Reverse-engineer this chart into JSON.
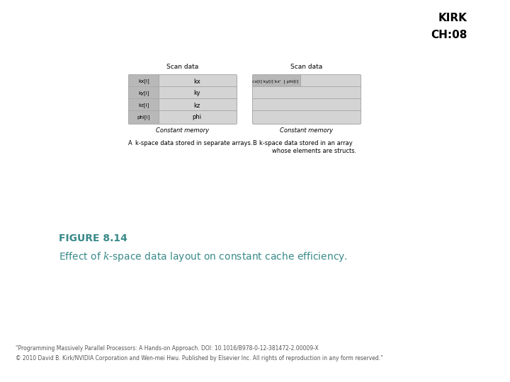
{
  "title_kirk": "KIRK",
  "title_ch": "CH:08",
  "background_color": "#ffffff",
  "figure_title": "FIGURE 8.14",
  "figure_caption_normal": "Effect of ",
  "figure_caption_italic": "k",
  "figure_caption_rest": "-space data layout on constant cache efficiency.",
  "figure_title_color": "#3a8a8a",
  "caption_color": "#3a8a8a",
  "footer_line1": "\"Programming Massively Parallel Processors: A Hands-on Approach. DOI: 10.1016/B978-0-12-381472-2.00009-X",
  "footer_line2": "© 2010 David B. Kirk/NVIDIA Corporation and Wen-mei Hwu. Published by Elsevier Inc. All rights of reproduction in any form reserved.\"",
  "diagram_A_title": "Scan data",
  "diagram_A_rows": [
    {
      "left_label": "kx[i]",
      "right_label": "kx"
    },
    {
      "left_label": "ky[i]",
      "right_label": "ky"
    },
    {
      "left_label": "kz[i]",
      "right_label": "kz"
    },
    {
      "left_label": "phi[i]",
      "right_label": "phi"
    }
  ],
  "diagram_A_memory_label": "Constant memory",
  "diagram_A_caption_A": "A",
  "diagram_A_caption_text": "k-space data stored in separate arrays.",
  "diagram_B_title": "Scan data",
  "diagram_B_first_row_label": "cx[i] ky[i] kz'  | phi[i]  ",
  "diagram_B_memory_label": "Constant memory",
  "diagram_B_caption_B": "B",
  "diagram_B_caption_line1": "k-space data stored in an array",
  "diagram_B_caption_line2": "whose elements are structs.",
  "box_fill_color": "#d4d4d4",
  "box_edge_color": "#aaaaaa",
  "left_box_fill": "#b8b8b8",
  "n_rows": 4
}
